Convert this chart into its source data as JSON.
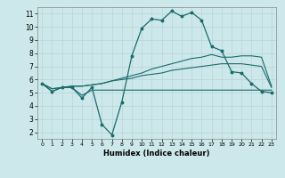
{
  "xlabel": "Humidex (Indice chaleur)",
  "bg_color": "#cce8ea",
  "grid_color": "#b8d4d6",
  "line_color": "#1a6b6b",
  "xlim": [
    -0.5,
    23.5
  ],
  "ylim": [
    1.5,
    11.5
  ],
  "xticks": [
    0,
    1,
    2,
    3,
    4,
    5,
    6,
    7,
    8,
    9,
    10,
    11,
    12,
    13,
    14,
    15,
    16,
    17,
    18,
    19,
    20,
    21,
    22,
    23
  ],
  "yticks": [
    2,
    3,
    4,
    5,
    6,
    7,
    8,
    9,
    10,
    11
  ],
  "line_main_x": [
    0,
    1,
    2,
    3,
    4,
    5,
    6,
    7,
    8,
    9,
    10,
    11,
    12,
    13,
    14,
    15,
    16,
    17,
    18,
    19,
    20,
    21,
    22,
    23
  ],
  "line_main_y": [
    5.7,
    5.1,
    5.4,
    5.4,
    4.6,
    5.4,
    2.6,
    1.8,
    4.3,
    7.8,
    9.9,
    10.6,
    10.5,
    11.2,
    10.8,
    11.1,
    10.5,
    8.5,
    8.2,
    6.6,
    6.5,
    5.7,
    5.1,
    5.0
  ],
  "line_upper1_x": [
    0,
    1,
    2,
    3,
    4,
    5,
    6,
    7,
    8,
    9,
    10,
    11,
    12,
    13,
    14,
    15,
    16,
    17,
    18,
    19,
    20,
    21,
    22,
    23
  ],
  "line_upper1_y": [
    5.7,
    5.3,
    5.4,
    5.5,
    5.5,
    5.6,
    5.7,
    5.9,
    6.1,
    6.3,
    6.5,
    6.8,
    7.0,
    7.2,
    7.4,
    7.6,
    7.7,
    7.9,
    7.7,
    7.7,
    7.8,
    7.8,
    7.7,
    5.5
  ],
  "line_upper2_x": [
    0,
    1,
    2,
    3,
    4,
    5,
    6,
    7,
    8,
    9,
    10,
    11,
    12,
    13,
    14,
    15,
    16,
    17,
    18,
    19,
    20,
    21,
    22,
    23
  ],
  "line_upper2_y": [
    5.7,
    5.3,
    5.4,
    5.5,
    5.5,
    5.6,
    5.7,
    5.9,
    6.0,
    6.1,
    6.3,
    6.4,
    6.5,
    6.7,
    6.8,
    6.9,
    7.0,
    7.1,
    7.2,
    7.2,
    7.2,
    7.1,
    7.0,
    5.4
  ],
  "line_bottom_x": [
    0,
    1,
    2,
    3,
    4,
    5,
    6,
    7,
    8,
    9,
    10,
    11,
    12,
    13,
    14,
    15,
    16,
    17,
    18,
    19,
    20,
    21,
    22,
    23
  ],
  "line_bottom_y": [
    5.7,
    5.1,
    5.4,
    5.4,
    4.8,
    5.2,
    5.2,
    5.2,
    5.2,
    5.2,
    5.2,
    5.2,
    5.2,
    5.2,
    5.2,
    5.2,
    5.2,
    5.2,
    5.2,
    5.2,
    5.2,
    5.2,
    5.2,
    5.2
  ]
}
